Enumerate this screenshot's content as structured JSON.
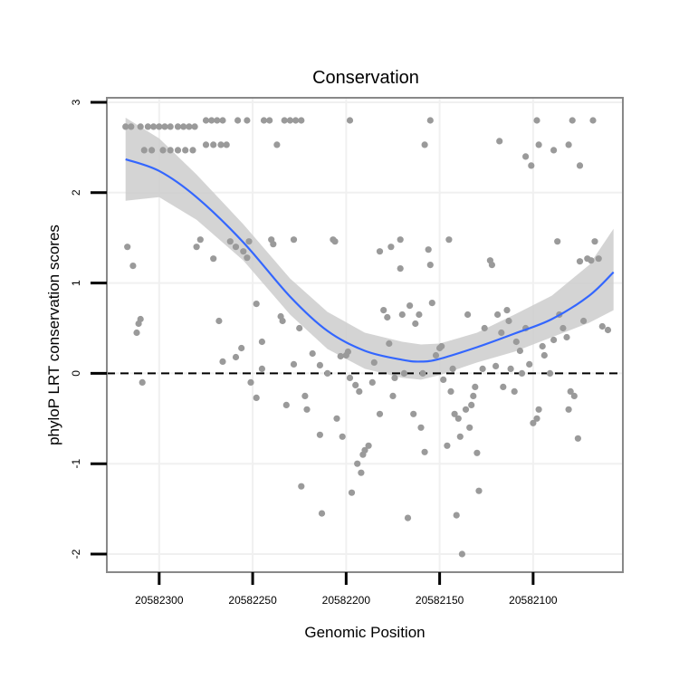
{
  "chart_data": {
    "type": "scatter",
    "title": "Conservation",
    "xlabel": "Genomic Position",
    "ylabel": "phyloP LRT conservation scores",
    "x_reversed": true,
    "xlim": [
      20582328,
      20582052
    ],
    "ylim": [
      -2.2,
      3.05
    ],
    "x_ticks": [
      20582300,
      20582250,
      20582200,
      20582150,
      20582100
    ],
    "y_ticks": [
      -2,
      -1,
      0,
      1,
      2,
      3
    ],
    "reference_line": {
      "y": 0,
      "style": "dashed"
    },
    "grid": true,
    "colors": {
      "points": "#9a9a9a",
      "smooth_line": "#3366ff",
      "confidence_band": "#cccccc",
      "panel_border": "#888888",
      "grid": "#f0f0f0",
      "reference_line": "#000000"
    },
    "smooth": {
      "x": [
        20582318,
        20582300,
        20582280,
        20582255,
        20582230,
        20582210,
        20582190,
        20582170,
        20582160,
        20582150,
        20582130,
        20582110,
        20582090,
        20582070,
        20582057
      ],
      "y": [
        2.37,
        2.24,
        1.95,
        1.45,
        0.85,
        0.47,
        0.25,
        0.15,
        0.13,
        0.16,
        0.29,
        0.44,
        0.6,
        0.86,
        1.12
      ],
      "upper": [
        2.83,
        2.6,
        2.2,
        1.65,
        1.05,
        0.68,
        0.45,
        0.35,
        0.32,
        0.33,
        0.45,
        0.65,
        0.86,
        1.2,
        1.6
      ],
      "lower": [
        1.91,
        1.95,
        1.7,
        1.25,
        0.65,
        0.27,
        0.05,
        -0.05,
        -0.07,
        -0.02,
        0.12,
        0.24,
        0.4,
        0.56,
        0.7
      ]
    },
    "points": [
      [
        20582318,
        2.73
      ],
      [
        20582315,
        2.73
      ],
      [
        20582310,
        2.73
      ],
      [
        20582306,
        2.73
      ],
      [
        20582303,
        2.73
      ],
      [
        20582300,
        2.73
      ],
      [
        20582297,
        2.73
      ],
      [
        20582294,
        2.73
      ],
      [
        20582290,
        2.73
      ],
      [
        20582287,
        2.73
      ],
      [
        20582284,
        2.73
      ],
      [
        20582281,
        2.73
      ],
      [
        20582275,
        2.8
      ],
      [
        20582272,
        2.8
      ],
      [
        20582269,
        2.8
      ],
      [
        20582266,
        2.8
      ],
      [
        20582258,
        2.8
      ],
      [
        20582253,
        2.8
      ],
      [
        20582244,
        2.8
      ],
      [
        20582241,
        2.8
      ],
      [
        20582233,
        2.8
      ],
      [
        20582230,
        2.8
      ],
      [
        20582227,
        2.8
      ],
      [
        20582224,
        2.8
      ],
      [
        20582198,
        2.8
      ],
      [
        20582155,
        2.8
      ],
      [
        20582098,
        2.8
      ],
      [
        20582079,
        2.8
      ],
      [
        20582068,
        2.8
      ],
      [
        20582308,
        2.47
      ],
      [
        20582304,
        2.47
      ],
      [
        20582298,
        2.47
      ],
      [
        20582294,
        2.47
      ],
      [
        20582290,
        2.47
      ],
      [
        20582286,
        2.47
      ],
      [
        20582282,
        2.47
      ],
      [
        20582275,
        2.53
      ],
      [
        20582271,
        2.53
      ],
      [
        20582267,
        2.53
      ],
      [
        20582264,
        2.53
      ],
      [
        20582237,
        2.53
      ],
      [
        20582158,
        2.53
      ],
      [
        20582097,
        2.53
      ],
      [
        20582118,
        2.57
      ],
      [
        20582104,
        2.4
      ],
      [
        20582101,
        2.3
      ],
      [
        20582089,
        2.47
      ],
      [
        20582081,
        2.53
      ],
      [
        20582075,
        2.3
      ],
      [
        20582317,
        1.4
      ],
      [
        20582314,
        1.19
      ],
      [
        20582312,
        0.45
      ],
      [
        20582311,
        0.55
      ],
      [
        20582310,
        0.6
      ],
      [
        20582309,
        -0.1
      ],
      [
        20582280,
        1.4
      ],
      [
        20582278,
        1.48
      ],
      [
        20582271,
        1.27
      ],
      [
        20582268,
        0.58
      ],
      [
        20582266,
        0.13
      ],
      [
        20582262,
        1.46
      ],
      [
        20582259,
        1.4
      ],
      [
        20582259,
        0.18
      ],
      [
        20582256,
        0.28
      ],
      [
        20582255,
        1.35
      ],
      [
        20582253,
        1.28
      ],
      [
        20582252,
        1.46
      ],
      [
        20582251,
        -0.1
      ],
      [
        20582248,
        0.77
      ],
      [
        20582248,
        -0.27
      ],
      [
        20582245,
        0.35
      ],
      [
        20582245,
        0.05
      ],
      [
        20582240,
        1.48
      ],
      [
        20582239,
        1.43
      ],
      [
        20582235,
        0.63
      ],
      [
        20582234,
        0.58
      ],
      [
        20582232,
        -0.35
      ],
      [
        20582228,
        1.48
      ],
      [
        20582228,
        0.1
      ],
      [
        20582225,
        0.5
      ],
      [
        20582224,
        -1.25
      ],
      [
        20582222,
        -0.25
      ],
      [
        20582221,
        -0.4
      ],
      [
        20582218,
        0.22
      ],
      [
        20582214,
        -0.68
      ],
      [
        20582214,
        0.09
      ],
      [
        20582213,
        -1.55
      ],
      [
        20582210,
        0.0
      ],
      [
        20582207,
        1.48
      ],
      [
        20582206,
        1.46
      ],
      [
        20582205,
        -0.5
      ],
      [
        20582203,
        0.19
      ],
      [
        20582202,
        -0.7
      ],
      [
        20582200,
        0.2
      ],
      [
        20582199,
        0.24
      ],
      [
        20582198,
        -0.05
      ],
      [
        20582197,
        -1.32
      ],
      [
        20582195,
        -0.13
      ],
      [
        20582193,
        -0.2
      ],
      [
        20582194,
        -1.0
      ],
      [
        20582192,
        -1.1
      ],
      [
        20582191,
        -0.9
      ],
      [
        20582190,
        -0.85
      ],
      [
        20582188,
        -0.8
      ],
      [
        20582186,
        -0.1
      ],
      [
        20582185,
        0.12
      ],
      [
        20582182,
        1.35
      ],
      [
        20582182,
        -0.45
      ],
      [
        20582180,
        0.7
      ],
      [
        20582178,
        0.62
      ],
      [
        20582177,
        0.33
      ],
      [
        20582176,
        1.4
      ],
      [
        20582175,
        -0.25
      ],
      [
        20582174,
        -0.05
      ],
      [
        20582171,
        1.16
      ],
      [
        20582171,
        1.48
      ],
      [
        20582170,
        0.65
      ],
      [
        20582169,
        0.0
      ],
      [
        20582167,
        -1.6
      ],
      [
        20582166,
        0.75
      ],
      [
        20582164,
        -0.45
      ],
      [
        20582163,
        0.55
      ],
      [
        20582161,
        0.65
      ],
      [
        20582160,
        -0.6
      ],
      [
        20582159,
        0.0
      ],
      [
        20582158,
        -0.87
      ],
      [
        20582156,
        1.37
      ],
      [
        20582155,
        1.2
      ],
      [
        20582154,
        0.78
      ],
      [
        20582152,
        0.2
      ],
      [
        20582150,
        0.28
      ],
      [
        20582149,
        0.3
      ],
      [
        20582148,
        -0.07
      ],
      [
        20582146,
        -0.8
      ],
      [
        20582145,
        1.48
      ],
      [
        20582144,
        -0.2
      ],
      [
        20582143,
        0.05
      ],
      [
        20582142,
        -0.45
      ],
      [
        20582141,
        -1.57
      ],
      [
        20582140,
        -0.5
      ],
      [
        20582139,
        -0.7
      ],
      [
        20582138,
        -2.0
      ],
      [
        20582136,
        -0.4
      ],
      [
        20582135,
        0.65
      ],
      [
        20582134,
        -0.6
      ],
      [
        20582133,
        -0.35
      ],
      [
        20582132,
        -0.25
      ],
      [
        20582131,
        -0.15
      ],
      [
        20582130,
        -0.88
      ],
      [
        20582129,
        -1.3
      ],
      [
        20582127,
        0.05
      ],
      [
        20582126,
        0.5
      ],
      [
        20582123,
        1.25
      ],
      [
        20582122,
        1.2
      ],
      [
        20582120,
        0.08
      ],
      [
        20582119,
        0.65
      ],
      [
        20582117,
        0.45
      ],
      [
        20582116,
        -0.15
      ],
      [
        20582114,
        0.7
      ],
      [
        20582113,
        0.58
      ],
      [
        20582112,
        0.05
      ],
      [
        20582110,
        -0.2
      ],
      [
        20582109,
        0.35
      ],
      [
        20582107,
        0.25
      ],
      [
        20582106,
        0.0
      ],
      [
        20582104,
        0.5
      ],
      [
        20582102,
        0.1
      ],
      [
        20582100,
        -0.55
      ],
      [
        20582098,
        -0.5
      ],
      [
        20582097,
        -0.4
      ],
      [
        20582095,
        0.3
      ],
      [
        20582094,
        0.2
      ],
      [
        20582091,
        0.0
      ],
      [
        20582089,
        0.37
      ],
      [
        20582087,
        1.46
      ],
      [
        20582086,
        0.65
      ],
      [
        20582084,
        0.5
      ],
      [
        20582082,
        0.4
      ],
      [
        20582081,
        -0.4
      ],
      [
        20582080,
        -0.2
      ],
      [
        20582078,
        -0.25
      ],
      [
        20582076,
        -0.72
      ],
      [
        20582075,
        1.24
      ],
      [
        20582073,
        0.58
      ],
      [
        20582071,
        1.27
      ],
      [
        20582069,
        1.25
      ],
      [
        20582067,
        1.46
      ],
      [
        20582065,
        1.27
      ],
      [
        20582063,
        0.52
      ],
      [
        20582060,
        0.48
      ]
    ]
  }
}
